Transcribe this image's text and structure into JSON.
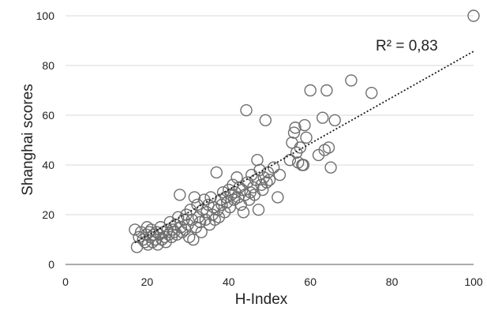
{
  "chart_data": {
    "type": "scatter",
    "title": "",
    "xlabel": "H-Index",
    "ylabel": "Shanghai scores",
    "xlim": [
      0,
      100
    ],
    "ylim": [
      0,
      100
    ],
    "xticks": [
      "0",
      "20",
      "40",
      "60",
      "80",
      "100"
    ],
    "yticks": [
      "0",
      "20",
      "40",
      "60",
      "80",
      "100"
    ],
    "grid": "horizontal",
    "marker": "open-circle",
    "colors": {
      "marker": "#6e6e6e",
      "trendline": "#1a1a1a",
      "grid": "#d9d9d9"
    },
    "annotation": "R² = 0,83",
    "trendline": {
      "type": "linear",
      "style": "dotted",
      "slope": 0.927,
      "intercept": -7.0
    },
    "series": [
      {
        "points": [
          [
            17,
            14
          ],
          [
            17.5,
            7
          ],
          [
            18,
            11
          ],
          [
            18.5,
            13
          ],
          [
            19,
            10
          ],
          [
            19.5,
            9
          ],
          [
            19.8,
            12
          ],
          [
            20,
            15
          ],
          [
            20.2,
            8
          ],
          [
            20.5,
            13
          ],
          [
            20.8,
            11
          ],
          [
            21,
            14
          ],
          [
            21.3,
            9
          ],
          [
            21.6,
            12
          ],
          [
            22,
            10
          ],
          [
            22.3,
            13
          ],
          [
            22.6,
            8
          ],
          [
            23,
            12
          ],
          [
            23.3,
            15
          ],
          [
            23.6,
            10
          ],
          [
            24,
            13
          ],
          [
            24.3,
            11
          ],
          [
            24.6,
            9
          ],
          [
            25,
            14
          ],
          [
            25.3,
            12
          ],
          [
            25.6,
            17
          ],
          [
            26,
            11
          ],
          [
            26.3,
            14
          ],
          [
            26.6,
            13
          ],
          [
            27,
            16
          ],
          [
            27.3,
            12
          ],
          [
            27.6,
            19
          ],
          [
            28,
            28
          ],
          [
            28.3,
            15
          ],
          [
            28.6,
            13
          ],
          [
            29,
            18
          ],
          [
            29.3,
            14
          ],
          [
            29.6,
            20
          ],
          [
            30,
            16
          ],
          [
            30.3,
            11
          ],
          [
            30.6,
            22
          ],
          [
            31,
            18
          ],
          [
            31.3,
            10
          ],
          [
            31.6,
            27
          ],
          [
            32,
            15
          ],
          [
            32.3,
            24
          ],
          [
            32.6,
            19
          ],
          [
            33,
            17
          ],
          [
            33.3,
            13
          ],
          [
            33.6,
            22
          ],
          [
            34,
            26
          ],
          [
            34.3,
            18
          ],
          [
            34.6,
            21
          ],
          [
            35,
            24
          ],
          [
            35.3,
            16
          ],
          [
            35.6,
            27
          ],
          [
            36,
            20
          ],
          [
            36.3,
            23
          ],
          [
            36.6,
            18
          ],
          [
            37,
            37
          ],
          [
            37.3,
            22
          ],
          [
            37.6,
            19
          ],
          [
            38,
            26
          ],
          [
            38.3,
            24
          ],
          [
            38.6,
            29
          ],
          [
            39,
            21
          ],
          [
            39.3,
            27
          ],
          [
            39.6,
            25
          ],
          [
            40,
            30
          ],
          [
            40.3,
            23
          ],
          [
            40.6,
            28
          ],
          [
            41,
            32
          ],
          [
            41.3,
            26
          ],
          [
            41.6,
            29
          ],
          [
            42,
            35
          ],
          [
            42.3,
            27
          ],
          [
            42.6,
            31
          ],
          [
            43,
            24
          ],
          [
            43.3,
            30
          ],
          [
            43.6,
            21
          ],
          [
            44,
            28
          ],
          [
            44.3,
            62
          ],
          [
            44.6,
            33
          ],
          [
            45,
            26
          ],
          [
            45.3,
            29
          ],
          [
            45.6,
            36
          ],
          [
            46,
            31
          ],
          [
            46.3,
            28
          ],
          [
            46.6,
            34
          ],
          [
            47,
            42
          ],
          [
            47.3,
            22
          ],
          [
            47.6,
            38
          ],
          [
            48,
            32
          ],
          [
            48.3,
            30
          ],
          [
            48.6,
            35
          ],
          [
            49,
            58
          ],
          [
            49.3,
            33
          ],
          [
            49.6,
            37
          ],
          [
            50,
            34
          ],
          [
            51,
            39
          ],
          [
            52,
            27
          ],
          [
            52.5,
            36
          ],
          [
            55,
            42
          ],
          [
            55.5,
            49
          ],
          [
            56,
            53
          ],
          [
            56.3,
            55
          ],
          [
            56.6,
            45
          ],
          [
            57,
            41
          ],
          [
            57.5,
            47
          ],
          [
            58,
            40
          ],
          [
            58.3,
            40
          ],
          [
            58.6,
            56
          ],
          [
            59,
            51
          ],
          [
            60,
            70
          ],
          [
            62,
            44
          ],
          [
            63,
            59
          ],
          [
            63.5,
            46
          ],
          [
            64,
            70
          ],
          [
            64.5,
            47
          ],
          [
            65,
            39
          ],
          [
            66,
            58
          ],
          [
            70,
            74
          ],
          [
            75,
            69
          ],
          [
            100,
            100
          ]
        ]
      }
    ]
  }
}
